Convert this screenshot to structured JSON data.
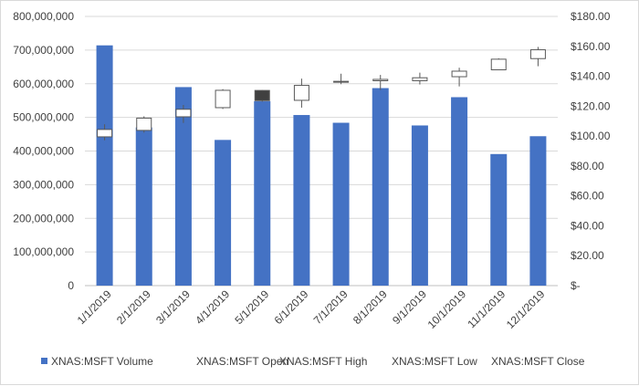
{
  "chart_data": {
    "type": "bar",
    "title": "",
    "xlabel": "",
    "ylabel": "",
    "categories": [
      "1/1/2019",
      "2/1/2019",
      "3/1/2019",
      "4/1/2019",
      "5/1/2019",
      "6/1/2019",
      "7/1/2019",
      "8/1/2019",
      "9/1/2019",
      "10/1/2019",
      "11/1/2019",
      "12/1/2019"
    ],
    "ylim": [
      0,
      800000000
    ],
    "y_ticks": [
      "0",
      "100,000,000",
      "200,000,000",
      "300,000,000",
      "400,000,000",
      "500,000,000",
      "600,000,000",
      "700,000,000",
      "800,000,000"
    ],
    "y2lim": [
      0,
      180
    ],
    "y2_ticks": [
      "$-",
      "$20.00",
      "$40.00",
      "$60.00",
      "$80.00",
      "$100.00",
      "$120.00",
      "$140.00",
      "$160.00",
      "$180.00"
    ],
    "grid": true,
    "legend_position": "bottom",
    "series": [
      {
        "name": "XNAS:MSFT Volume",
        "axis": "left",
        "color": "#4472c4",
        "values": [
          714000000,
          470000000,
          590000000,
          433000000,
          548000000,
          507000000,
          484000000,
          587000000,
          476000000,
          560000000,
          391000000,
          444000000
        ]
      },
      {
        "name": "XNAS:MSFT Open",
        "axis": "right",
        "values": [
          99.5,
          103.8,
          112.9,
          119.0,
          130.5,
          123.9,
          136.6,
          137.0,
          137.0,
          139.7,
          144.3,
          151.8
        ]
      },
      {
        "name": "XNAS:MSFT High",
        "axis": "right",
        "values": [
          107.9,
          113.2,
          120.8,
          131.4,
          130.7,
          138.4,
          141.7,
          140.9,
          142.4,
          145.7,
          152.0,
          159.6
        ]
      },
      {
        "name": "XNAS:MSFT Low",
        "axis": "right",
        "values": [
          97.2,
          102.3,
          108.8,
          118.1,
          123.0,
          119.0,
          134.7,
          130.8,
          134.5,
          133.2,
          144.0,
          146.7
        ]
      },
      {
        "name": "XNAS:MSFT Close",
        "axis": "right",
        "values": [
          104.4,
          112.0,
          117.9,
          130.6,
          123.7,
          133.9,
          136.3,
          137.9,
          139.0,
          143.4,
          151.4,
          157.7
        ]
      }
    ],
    "candle_colors": {
      "up": "#ffffff",
      "down": "#404040",
      "outline": "#595959"
    }
  }
}
